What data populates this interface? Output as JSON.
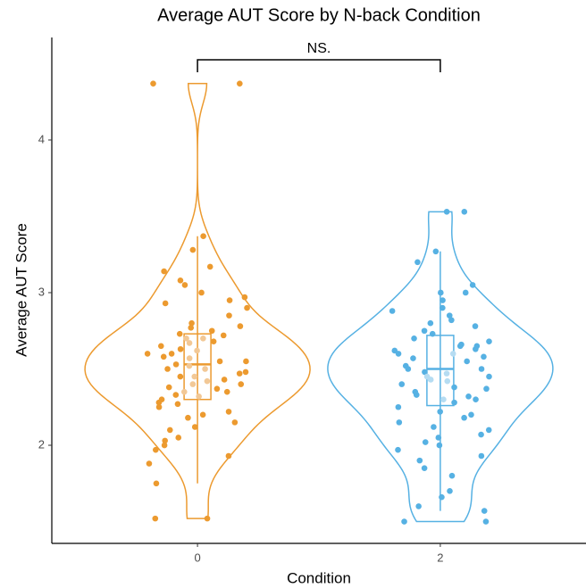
{
  "chart_data": {
    "type": "violin",
    "title": "Average AUT Score by N-back Condition",
    "x_label": "Condition",
    "y_label": "Average AUT Score",
    "annotation": "NS.",
    "categories": [
      "0",
      "2"
    ],
    "ylim": [
      1.357,
      4.672
    ],
    "yticks": [
      2,
      3,
      4
    ],
    "series": [
      {
        "name": "0",
        "color": "#ec9a2f",
        "light": "#f2c896",
        "values": [
          4.37,
          4.37,
          3.37,
          3.05,
          3.28,
          3.17,
          3.14,
          3.08,
          3.0,
          2.97,
          2.95,
          2.93,
          2.9,
          2.85,
          2.8,
          2.78,
          2.77,
          2.75,
          2.73,
          2.72,
          2.7,
          2.68,
          2.67,
          2.65,
          2.63,
          2.62,
          2.6,
          2.58,
          2.57,
          2.55,
          2.55,
          2.53,
          2.52,
          2.5,
          2.5,
          2.48,
          2.47,
          2.45,
          2.43,
          2.42,
          2.4,
          2.4,
          2.38,
          2.37,
          2.35,
          2.33,
          2.32,
          2.3,
          2.28,
          2.27,
          2.25,
          2.22,
          2.2,
          2.18,
          2.15,
          2.12,
          2.1,
          2.05,
          2.03,
          2.0,
          1.97,
          1.93,
          1.88,
          1.75,
          1.52,
          1.52,
          2.6,
          2.7,
          2.45,
          2.35
        ],
        "box": {
          "low": 1.75,
          "q1": 2.3,
          "median": 2.53,
          "q3": 2.73,
          "high": 3.37
        }
      },
      {
        "name": "2",
        "color": "#56b1e3",
        "light": "#b5dcf2",
        "values": [
          3.53,
          3.53,
          3.27,
          3.2,
          3.05,
          3.0,
          3.0,
          2.95,
          2.9,
          2.88,
          2.85,
          2.82,
          2.8,
          2.78,
          2.75,
          2.73,
          2.7,
          2.68,
          2.66,
          2.65,
          2.63,
          2.62,
          2.6,
          2.58,
          2.57,
          2.55,
          2.52,
          2.5,
          2.5,
          2.48,
          2.47,
          2.45,
          2.43,
          2.42,
          2.4,
          2.38,
          2.37,
          2.35,
          2.33,
          2.32,
          2.3,
          2.28,
          2.25,
          2.22,
          2.2,
          2.18,
          2.15,
          2.12,
          2.1,
          2.07,
          2.05,
          2.02,
          2.0,
          1.97,
          1.93,
          1.9,
          1.85,
          1.8,
          1.7,
          1.66,
          1.6,
          1.57,
          1.5,
          1.5,
          2.65,
          2.6,
          2.45,
          2.3
        ],
        "box": {
          "low": 1.57,
          "q1": 2.26,
          "median": 2.5,
          "q3": 2.72,
          "high": 3.27
        }
      }
    ]
  }
}
